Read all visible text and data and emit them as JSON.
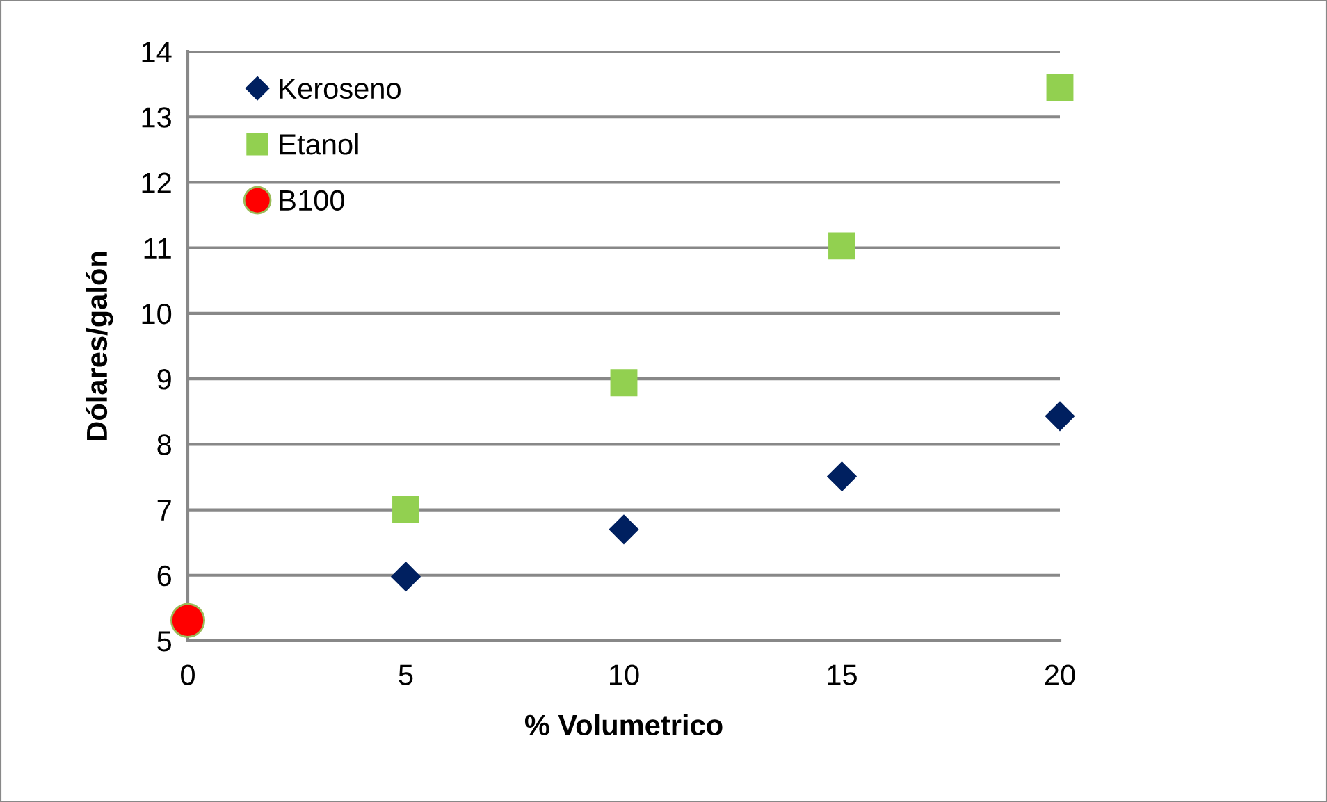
{
  "chart_data": {
    "type": "scatter",
    "xlabel": "% Volumetrico",
    "ylabel": "Dólares/galón",
    "xlim": [
      0,
      20
    ],
    "xticks": [
      0,
      5,
      10,
      15,
      20
    ],
    "ylim": [
      5,
      14
    ],
    "yticks": [
      5,
      6,
      7,
      8,
      9,
      10,
      11,
      12,
      13,
      14
    ],
    "grid": "y",
    "legend": "top left",
    "series": [
      {
        "name": "Keroseno",
        "color": "#002060",
        "marker": "diamond",
        "x": [
          5,
          10,
          15,
          20
        ],
        "values": [
          5.98,
          6.7,
          7.51,
          8.43
        ]
      },
      {
        "name": "Etanol",
        "color": "#92d050",
        "marker": "square",
        "x": [
          5,
          10,
          15,
          20
        ],
        "values": [
          7.01,
          8.94,
          11.03,
          13.45
        ]
      },
      {
        "name": "B100",
        "color": "#ff0000",
        "marker": "circle",
        "x": [
          0
        ],
        "values": [
          5.31
        ]
      }
    ]
  }
}
